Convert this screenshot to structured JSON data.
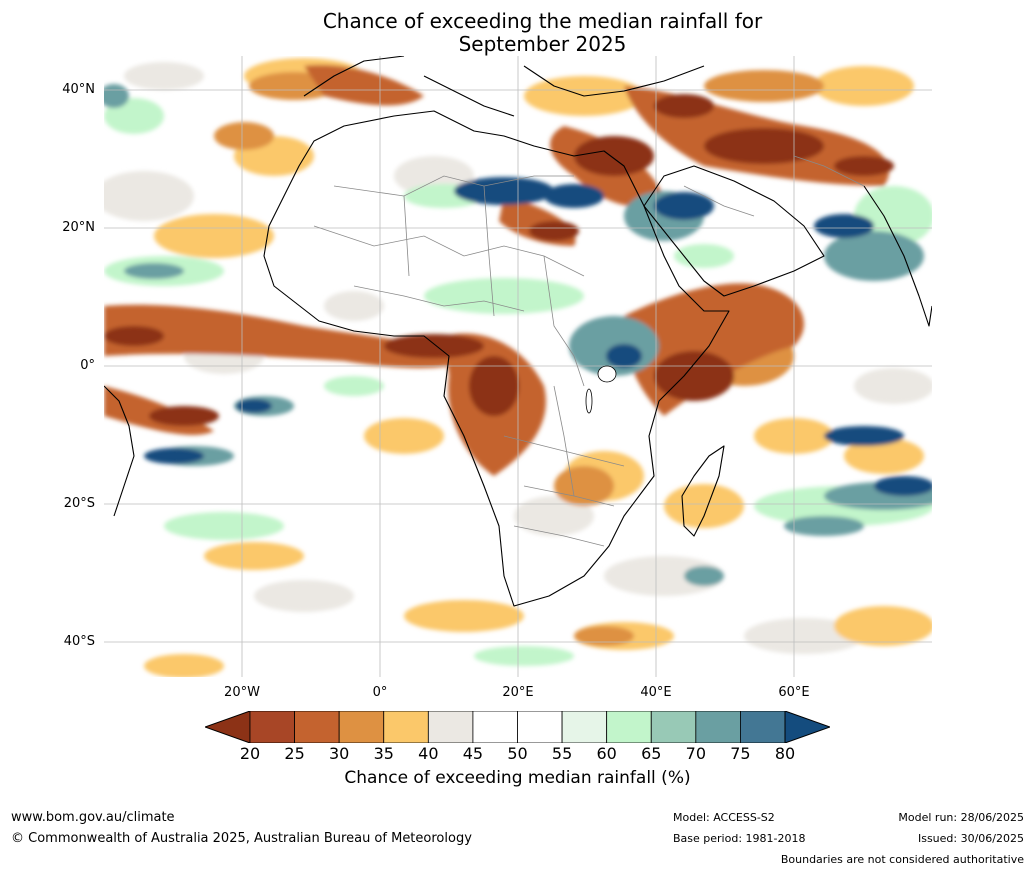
{
  "title": {
    "line1": "Chance of exceeding the median rainfall for",
    "line2": "September 2025"
  },
  "map": {
    "region": "Africa",
    "lat_range": [
      -45,
      45
    ],
    "lon_range": [
      -40,
      80
    ],
    "lat_labels": [
      "40°N",
      "20°N",
      "0°",
      "20°S",
      "40°S"
    ],
    "lat_values": [
      40,
      20,
      0,
      -20,
      -40
    ],
    "lon_labels": [
      "20°W",
      "0°",
      "20°E",
      "40°E",
      "60°E"
    ],
    "lon_values": [
      -20,
      0,
      20,
      40,
      60
    ]
  },
  "colorbar": {
    "ticks": [
      "20",
      "25",
      "30",
      "35",
      "40",
      "45",
      "50",
      "55",
      "60",
      "65",
      "70",
      "75",
      "80"
    ],
    "colors": [
      "#8c3216",
      "#a84626",
      "#c4632f",
      "#de9142",
      "#fbc86a",
      "#ebe8e3",
      "#ffffff",
      "#ffffff",
      "#e6f5e8",
      "#c2f5cb",
      "#98c9b6",
      "#6a9fa2",
      "#437794",
      "#144c7e"
    ],
    "label": "Chance of exceeding median rainfall (%)"
  },
  "footer": {
    "website": "www.bom.gov.au/climate",
    "copyright": "© Commonwealth of Australia 2025, Australian Bureau of Meteorology",
    "model": "Model: ACCESS-S2",
    "base_period": "Base period: 1981-2018",
    "model_run": "Model run: 28/06/2025",
    "issued": "Issued: 30/06/2025",
    "disclaimer": "Boundaries are not considered authoritative"
  }
}
